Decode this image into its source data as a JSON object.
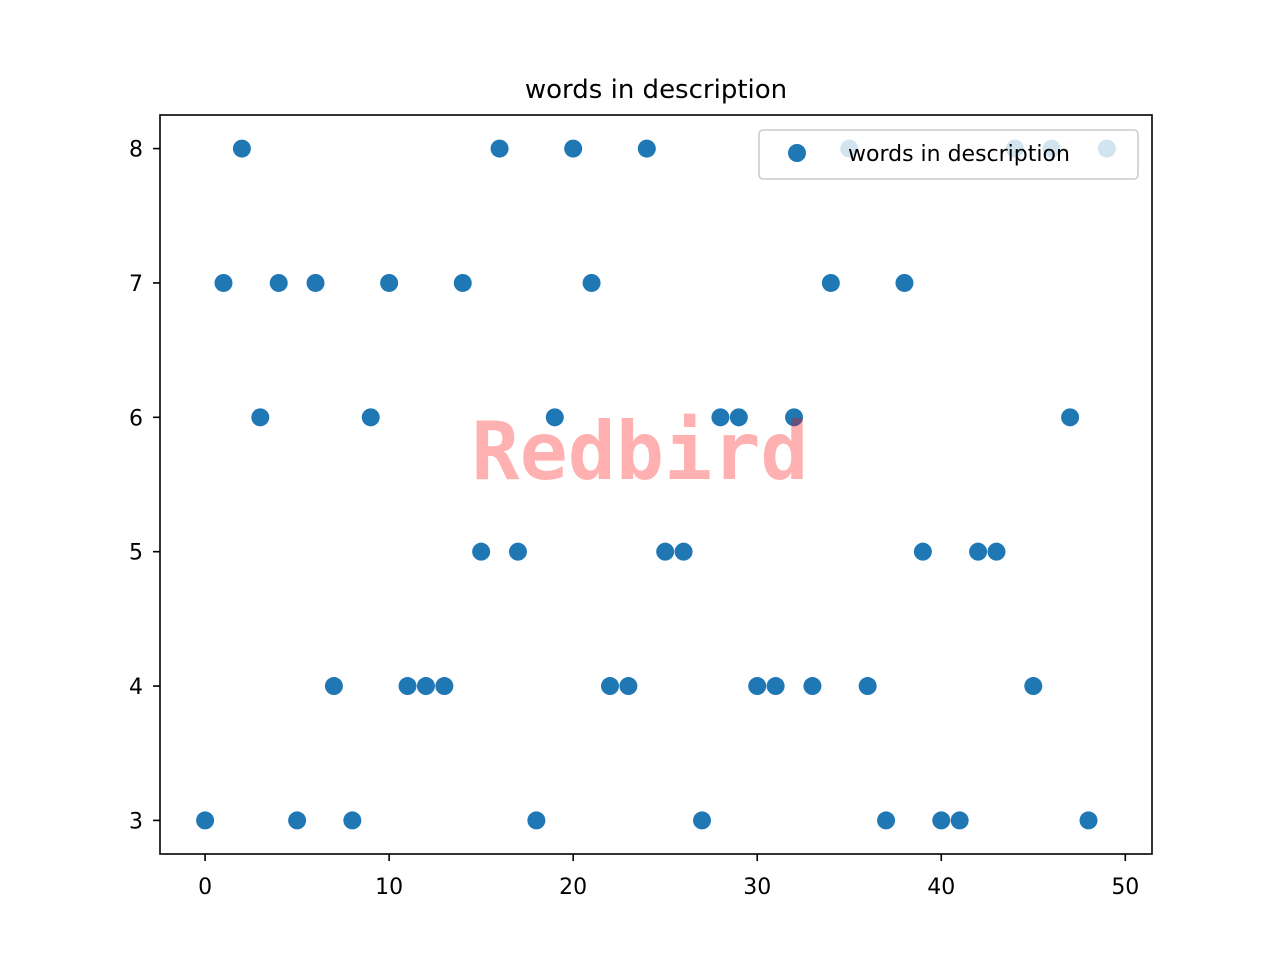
{
  "chart_data": {
    "type": "scatter",
    "title": "words in description",
    "xlabel": "",
    "ylabel": "",
    "xlim": [
      -2.45,
      51.45
    ],
    "ylim": [
      2.75,
      8.25
    ],
    "xticks": [
      0,
      10,
      20,
      30,
      40,
      50
    ],
    "yticks": [
      3,
      4,
      5,
      6,
      7,
      8
    ],
    "grid": false,
    "legend_position": "upper right",
    "series": [
      {
        "name": "words in description",
        "color": "#1f77b4",
        "x": [
          0,
          1,
          2,
          3,
          4,
          5,
          6,
          7,
          8,
          9,
          10,
          11,
          12,
          13,
          14,
          15,
          16,
          17,
          18,
          19,
          20,
          21,
          22,
          23,
          24,
          25,
          26,
          27,
          28,
          29,
          30,
          31,
          32,
          33,
          34,
          35,
          36,
          37,
          38,
          39,
          40,
          41,
          42,
          43,
          44,
          45,
          46,
          47,
          48,
          49
        ],
        "y": [
          3,
          7,
          8,
          6,
          7,
          3,
          7,
          4,
          3,
          6,
          7,
          4,
          4,
          4,
          7,
          5,
          8,
          5,
          3,
          6,
          8,
          7,
          4,
          4,
          8,
          5,
          5,
          3,
          6,
          6,
          4,
          4,
          6,
          4,
          7,
          8,
          4,
          3,
          7,
          5,
          3,
          3,
          5,
          5,
          8,
          4,
          8,
          6,
          3,
          8
        ]
      }
    ]
  },
  "watermark": {
    "text": "Redbird",
    "color": "#ff0000"
  }
}
